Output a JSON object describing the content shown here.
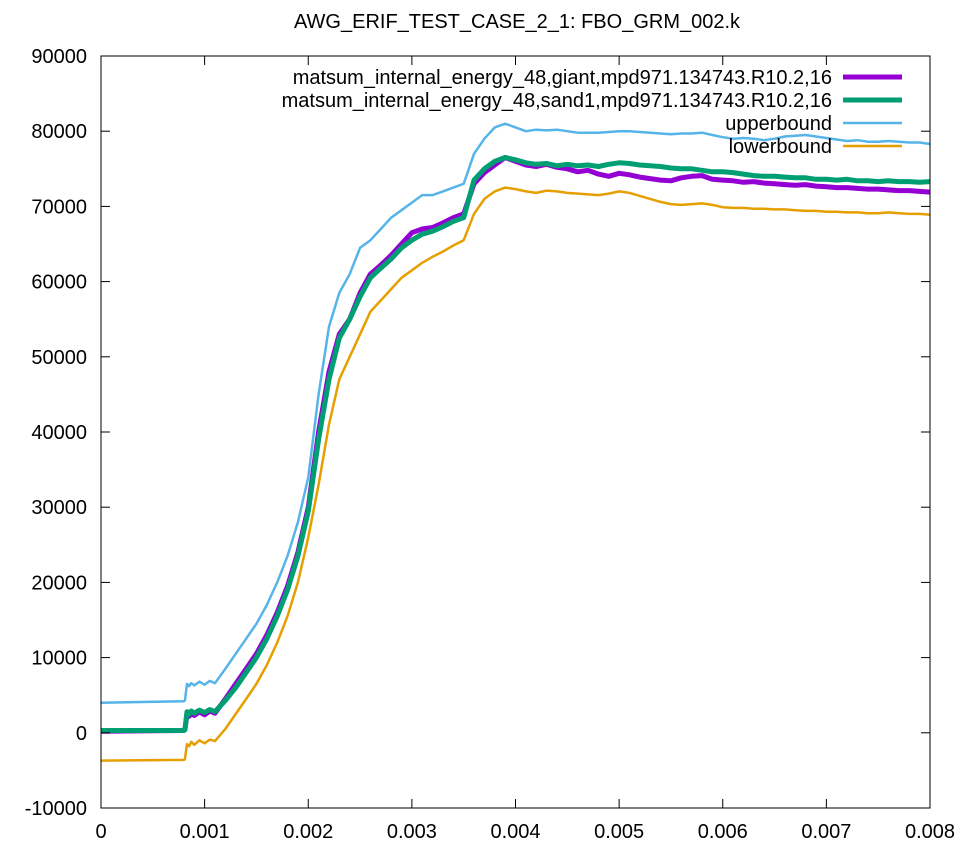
{
  "chart_data": {
    "type": "line",
    "title": "AWG_ERIF_TEST_CASE_2_1: FBO_GRM_002.k",
    "xlabel": "",
    "ylabel": "",
    "xlim": [
      0,
      0.008
    ],
    "ylim": [
      -10000,
      90000
    ],
    "x_ticks": [
      0,
      0.001,
      0.002,
      0.003,
      0.004,
      0.005,
      0.006,
      0.007,
      0.008
    ],
    "x_tick_labels": [
      "0",
      "0.001",
      "0.002",
      "0.003",
      "0.004",
      "0.005",
      "0.006",
      "0.007",
      "0.008"
    ],
    "y_ticks": [
      -10000,
      0,
      10000,
      20000,
      30000,
      40000,
      50000,
      60000,
      70000,
      80000,
      90000
    ],
    "y_tick_labels": [
      "-10000",
      "0",
      "10000",
      "20000",
      "30000",
      "40000",
      "50000",
      "60000",
      "70000",
      "80000",
      "90000"
    ],
    "grid": false,
    "legend_position": "top-right",
    "series": [
      {
        "name": "matsum_internal_energy_48,giant,mpd971.134743.R10.2,16",
        "color": "#9400d3",
        "width": 5,
        "x": [
          0,
          0.0008,
          0.00081,
          0.00083,
          0.00085,
          0.00087,
          0.0009,
          0.00095,
          0.001,
          0.00105,
          0.0011,
          0.0012,
          0.0013,
          0.0014,
          0.0015,
          0.0016,
          0.0017,
          0.0018,
          0.0019,
          0.002,
          0.0021,
          0.0022,
          0.0023,
          0.0024,
          0.0025,
          0.0026,
          0.0027,
          0.0028,
          0.0029,
          0.003,
          0.0031,
          0.0032,
          0.0033,
          0.0034,
          0.0035,
          0.0036,
          0.0037,
          0.0038,
          0.0039,
          0.004,
          0.0041,
          0.0042,
          0.0043,
          0.0044,
          0.0045,
          0.0046,
          0.0047,
          0.0048,
          0.0049,
          0.005,
          0.0051,
          0.0052,
          0.0053,
          0.0054,
          0.0055,
          0.0056,
          0.0057,
          0.0058,
          0.0059,
          0.006,
          0.0061,
          0.0062,
          0.0063,
          0.0064,
          0.0065,
          0.0066,
          0.0067,
          0.0068,
          0.0069,
          0.007,
          0.0071,
          0.0072,
          0.0073,
          0.0074,
          0.0075,
          0.0076,
          0.0077,
          0.0078,
          0.0079,
          0.008
        ],
        "y": [
          200,
          300,
          400,
          2500,
          2200,
          2600,
          2300,
          2800,
          2400,
          2900,
          2600,
          4500,
          6500,
          8500,
          10500,
          13000,
          16000,
          19500,
          24000,
          30000,
          40000,
          48000,
          53000,
          55000,
          58500,
          61000,
          62200,
          63500,
          65000,
          66500,
          67000,
          67200,
          67800,
          68500,
          69000,
          73000,
          74500,
          75500,
          76500,
          76000,
          75500,
          75300,
          75600,
          75200,
          75000,
          74600,
          74800,
          74300,
          74000,
          74400,
          74200,
          73900,
          73700,
          73500,
          73400,
          73800,
          74000,
          74100,
          73600,
          73500,
          73400,
          73200,
          73300,
          73100,
          73000,
          72900,
          72800,
          72900,
          72700,
          72600,
          72500,
          72500,
          72400,
          72300,
          72300,
          72200,
          72100,
          72100,
          72000,
          71900
        ]
      },
      {
        "name": "matsum_internal_energy_48,sand1,mpd971.134743.R10.2,16",
        "color": "#009e73",
        "width": 5,
        "x": [
          0,
          0.0008,
          0.00081,
          0.00083,
          0.00085,
          0.00087,
          0.0009,
          0.00095,
          0.001,
          0.00105,
          0.0011,
          0.0012,
          0.0013,
          0.0014,
          0.0015,
          0.0016,
          0.0017,
          0.0018,
          0.0019,
          0.002,
          0.0021,
          0.0022,
          0.0023,
          0.0024,
          0.0025,
          0.0026,
          0.0027,
          0.0028,
          0.0029,
          0.003,
          0.0031,
          0.0032,
          0.0033,
          0.0034,
          0.0035,
          0.0036,
          0.0037,
          0.0038,
          0.0039,
          0.004,
          0.0041,
          0.0042,
          0.0043,
          0.0044,
          0.0045,
          0.0046,
          0.0047,
          0.0048,
          0.0049,
          0.005,
          0.0051,
          0.0052,
          0.0053,
          0.0054,
          0.0055,
          0.0056,
          0.0057,
          0.0058,
          0.0059,
          0.006,
          0.0061,
          0.0062,
          0.0063,
          0.0064,
          0.0065,
          0.0066,
          0.0067,
          0.0068,
          0.0069,
          0.007,
          0.0071,
          0.0072,
          0.0073,
          0.0074,
          0.0075,
          0.0076,
          0.0077,
          0.0078,
          0.0079,
          0.008
        ],
        "y": [
          300,
          300,
          400,
          2800,
          2500,
          2900,
          2600,
          3000,
          2700,
          3100,
          2800,
          4300,
          6000,
          8000,
          10000,
          12500,
          15500,
          19000,
          23500,
          29500,
          39000,
          47000,
          52500,
          55000,
          58000,
          60500,
          61800,
          63000,
          64500,
          65500,
          66300,
          66700,
          67300,
          68000,
          68500,
          73500,
          75000,
          76000,
          76500,
          76200,
          75800,
          75600,
          75700,
          75400,
          75600,
          75400,
          75500,
          75300,
          75600,
          75800,
          75700,
          75500,
          75400,
          75300,
          75100,
          75000,
          75000,
          74800,
          74600,
          74600,
          74500,
          74300,
          74100,
          74000,
          74000,
          73900,
          73800,
          73800,
          73600,
          73600,
          73500,
          73600,
          73400,
          73400,
          73300,
          73400,
          73300,
          73300,
          73200,
          73300
        ]
      },
      {
        "name": "upperbound",
        "color": "#56b4e9",
        "width": 2.5,
        "x": [
          0,
          0.0008,
          0.00081,
          0.00083,
          0.00085,
          0.00087,
          0.0009,
          0.00095,
          0.001,
          0.00105,
          0.0011,
          0.0012,
          0.0013,
          0.0014,
          0.0015,
          0.0016,
          0.0017,
          0.0018,
          0.0019,
          0.002,
          0.0021,
          0.0022,
          0.0023,
          0.0024,
          0.0025,
          0.0026,
          0.0027,
          0.0028,
          0.0029,
          0.003,
          0.0031,
          0.0032,
          0.0033,
          0.0034,
          0.0035,
          0.0036,
          0.0037,
          0.0038,
          0.0039,
          0.004,
          0.0041,
          0.0042,
          0.0043,
          0.0044,
          0.0045,
          0.0046,
          0.0047,
          0.0048,
          0.0049,
          0.005,
          0.0051,
          0.0052,
          0.0053,
          0.0054,
          0.0055,
          0.0056,
          0.0057,
          0.0058,
          0.0059,
          0.006,
          0.0061,
          0.0062,
          0.0063,
          0.0064,
          0.0065,
          0.0066,
          0.0067,
          0.0068,
          0.0069,
          0.007,
          0.0071,
          0.0072,
          0.0073,
          0.0074,
          0.0075,
          0.0076,
          0.0077,
          0.0078,
          0.0079,
          0.008
        ],
        "y": [
          4000,
          4200,
          4300,
          6500,
          6200,
          6600,
          6300,
          6800,
          6400,
          6900,
          6600,
          8500,
          10500,
          12500,
          14500,
          17000,
          20000,
          23500,
          28000,
          34000,
          45000,
          54000,
          58500,
          61000,
          64500,
          65500,
          67000,
          68500,
          69500,
          70500,
          71500,
          71500,
          72000,
          72500,
          73000,
          77000,
          79000,
          80500,
          81000,
          80500,
          80000,
          80200,
          80100,
          80200,
          80000,
          79800,
          79800,
          79800,
          79900,
          80000,
          80000,
          79900,
          79800,
          79700,
          79600,
          79700,
          79700,
          79800,
          79500,
          79200,
          79000,
          79100,
          79000,
          78800,
          79000,
          79300,
          79400,
          79500,
          79300,
          79100,
          78900,
          78700,
          78800,
          78600,
          78600,
          78700,
          78600,
          78500,
          78500,
          78300
        ]
      },
      {
        "name": "lowerbound",
        "color": "#e69f00",
        "width": 2.5,
        "x": [
          0,
          0.0008,
          0.00081,
          0.00083,
          0.00085,
          0.00087,
          0.0009,
          0.00095,
          0.001,
          0.00105,
          0.0011,
          0.0012,
          0.0013,
          0.0014,
          0.0015,
          0.0016,
          0.0017,
          0.0018,
          0.0019,
          0.002,
          0.0021,
          0.0022,
          0.0023,
          0.0024,
          0.0025,
          0.0026,
          0.0027,
          0.0028,
          0.0029,
          0.003,
          0.0031,
          0.0032,
          0.0033,
          0.0034,
          0.0035,
          0.0036,
          0.0037,
          0.0038,
          0.0039,
          0.004,
          0.0041,
          0.0042,
          0.0043,
          0.0044,
          0.0045,
          0.0046,
          0.0047,
          0.0048,
          0.0049,
          0.005,
          0.0051,
          0.0052,
          0.0053,
          0.0054,
          0.0055,
          0.0056,
          0.0057,
          0.0058,
          0.0059,
          0.006,
          0.0061,
          0.0062,
          0.0063,
          0.0064,
          0.0065,
          0.0066,
          0.0067,
          0.0068,
          0.0069,
          0.007,
          0.0071,
          0.0072,
          0.0073,
          0.0074,
          0.0075,
          0.0076,
          0.0077,
          0.0078,
          0.0079,
          0.008
        ],
        "y": [
          -3700,
          -3600,
          -3500,
          -1500,
          -1800,
          -1200,
          -1600,
          -1000,
          -1400,
          -900,
          -1100,
          500,
          2500,
          4500,
          6500,
          9000,
          12000,
          15500,
          20000,
          26000,
          33000,
          41000,
          47000,
          50000,
          53000,
          56000,
          57500,
          59000,
          60500,
          61500,
          62500,
          63300,
          64000,
          64800,
          65500,
          69000,
          71000,
          72000,
          72500,
          72300,
          72000,
          71800,
          72100,
          72000,
          71800,
          71700,
          71600,
          71500,
          71700,
          72000,
          71800,
          71400,
          71000,
          70600,
          70300,
          70200,
          70300,
          70400,
          70200,
          69900,
          69800,
          69800,
          69700,
          69700,
          69600,
          69600,
          69500,
          69400,
          69400,
          69300,
          69300,
          69200,
          69200,
          69100,
          69100,
          69200,
          69100,
          69000,
          69000,
          68900
        ]
      }
    ]
  }
}
